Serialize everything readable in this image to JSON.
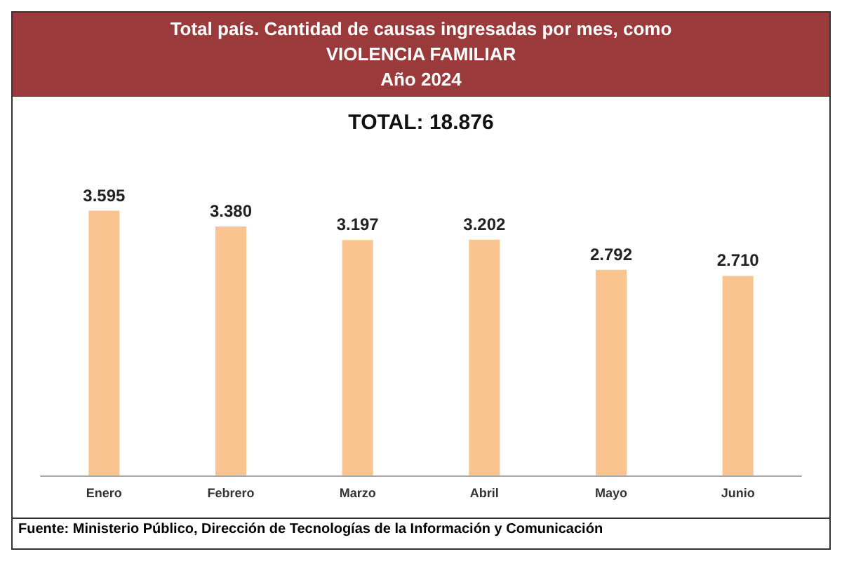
{
  "chart_data": {
    "type": "bar",
    "title": "Total país. Cantidad de causas ingresadas por mes, como\nVIOLENCIA FAMILIAR\nAño 2024",
    "subtitle": "TOTAL: 18.876",
    "categories": [
      "Enero",
      "Febrero",
      "Marzo",
      "Abril",
      "Mayo",
      "Junio"
    ],
    "values": [
      3595,
      3380,
      3197,
      3202,
      2792,
      2710
    ],
    "value_labels": [
      "3.595",
      "3.380",
      "3.197",
      "3.202",
      "2.792",
      "2.710"
    ],
    "color": "#f9c48f",
    "tick_labels": "x",
    "annotations": [
      "Fuente: Ministerio Público, Dirección de Tecnologías de la Información y Comunicación"
    ]
  }
}
